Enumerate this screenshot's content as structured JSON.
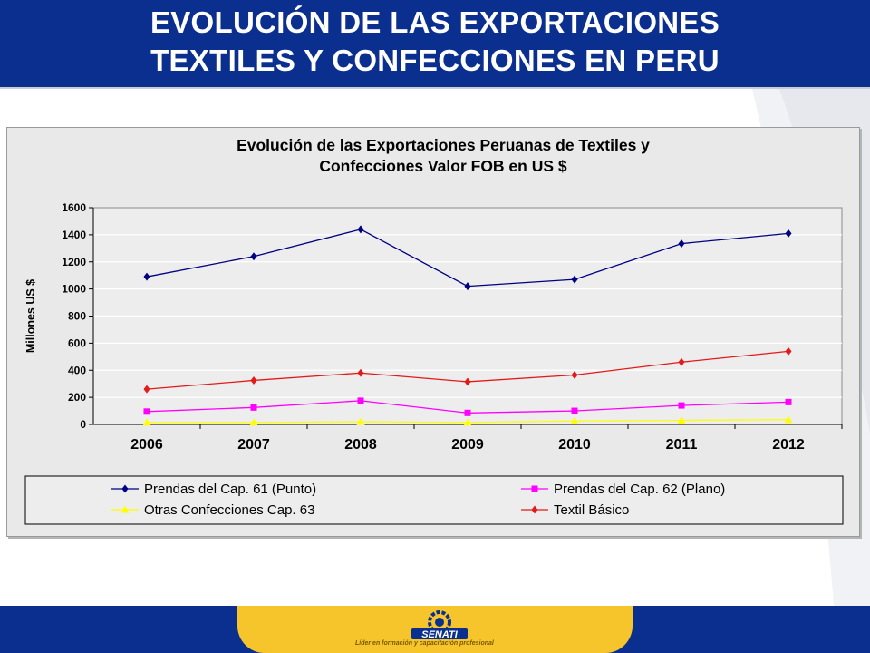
{
  "header": {
    "title_line1": "EVOLUCIÓN DE LAS EXPORTACIONES",
    "title_line2": "TEXTILES Y CONFECCIONES EN PERU"
  },
  "footer": {
    "logo_text": "SENATI",
    "tagline": "Líder en formación y capacitación profesional"
  },
  "colors": {
    "header_blue": "#0b2f8f",
    "footer_gold": "#f6c42b",
    "punto": "#000080",
    "plano": "#ff00ff",
    "otras": "#ffff00",
    "textil": "#e31a1a"
  },
  "chart_data": {
    "type": "line",
    "title": "Evolución de las Exportaciones Peruanas de Textiles y Confecciones Valor FOB en US $",
    "title_lines": [
      "Evolución de las Exportaciones Peruanas de Textiles y",
      "Confecciones Valor FOB en US $"
    ],
    "xlabel": "",
    "ylabel": "Millones US $",
    "categories": [
      "2006",
      "2007",
      "2008",
      "2009",
      "2010",
      "2011",
      "2012"
    ],
    "ylim": [
      0,
      1600
    ],
    "yticks": [
      0,
      200,
      400,
      600,
      800,
      1000,
      1200,
      1400,
      1600
    ],
    "grid": "horizontal",
    "legend_position": "bottom",
    "series": [
      {
        "name": "Prendas del Cap. 61 (Punto)",
        "color": "#000080",
        "marker": "diamond",
        "values": [
          1090,
          1240,
          1440,
          1020,
          1070,
          1335,
          1410
        ]
      },
      {
        "name": "Prendas del Cap. 62 (Plano)",
        "color": "#ff00ff",
        "marker": "square",
        "values": [
          95,
          125,
          175,
          85,
          100,
          140,
          165
        ]
      },
      {
        "name": "Otras Confecciones Cap. 63",
        "color": "#ffff00",
        "marker": "triangle",
        "values": [
          15,
          15,
          20,
          15,
          25,
          30,
          35
        ]
      },
      {
        "name": "Textil Básico",
        "color": "#e31a1a",
        "marker": "diamond",
        "values": [
          260,
          325,
          380,
          315,
          365,
          460,
          540
        ]
      }
    ]
  }
}
